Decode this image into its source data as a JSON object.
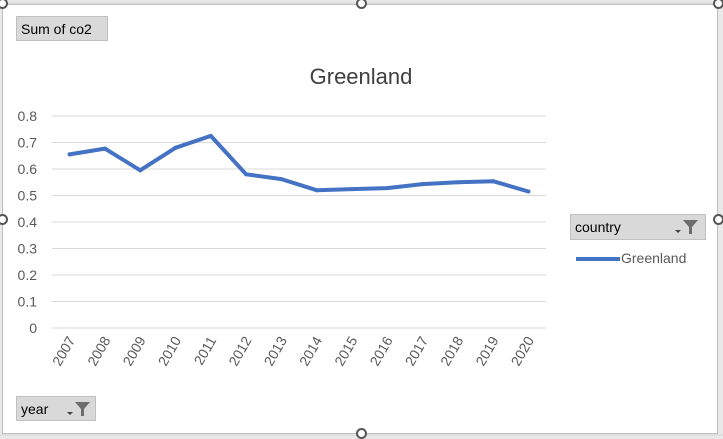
{
  "value_field": "Sum of co2",
  "filters": {
    "country_label": "country",
    "year_label": "year"
  },
  "colors": {
    "line": "#4472C4",
    "grid": "#d9d9d9",
    "axis_text": "#595959",
    "title": "#404040"
  },
  "chart_data": {
    "type": "line",
    "title": "Greenland",
    "xlabel": "",
    "ylabel": "",
    "categories": [
      "2007",
      "2008",
      "2009",
      "2010",
      "2011",
      "2012",
      "2013",
      "2014",
      "2015",
      "2016",
      "2017",
      "2018",
      "2019",
      "2020"
    ],
    "series": [
      {
        "name": "Greenland",
        "values": [
          0.655,
          0.677,
          0.595,
          0.68,
          0.725,
          0.58,
          0.562,
          0.52,
          0.524,
          0.528,
          0.543,
          0.55,
          0.554,
          0.515
        ]
      }
    ],
    "ylim": [
      0,
      0.8
    ],
    "yticks": [
      "0",
      "0.1",
      "0.2",
      "0.3",
      "0.4",
      "0.5",
      "0.6",
      "0.7",
      "0.8"
    ],
    "grid": true,
    "legend": "right"
  }
}
